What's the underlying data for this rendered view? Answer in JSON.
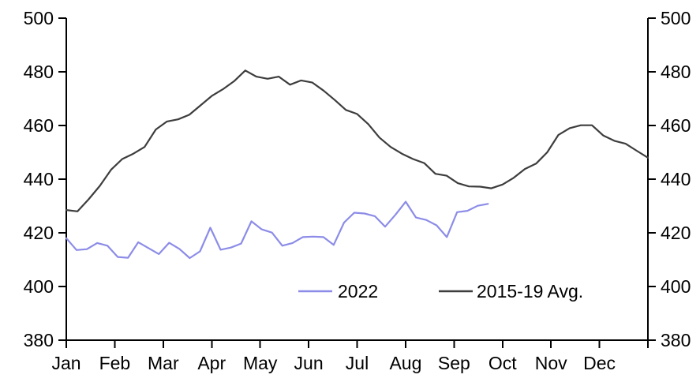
{
  "figure": {
    "background_color": "#ffffff",
    "axis_color": "#000000",
    "title": ""
  },
  "chart_data": {
    "type": "line",
    "title": "",
    "xlabel": "",
    "ylabel": "",
    "grid": false,
    "x_axis": {
      "categories": [
        "Jan",
        "Feb",
        "Mar",
        "Apr",
        "May",
        "Jun",
        "Jul",
        "Aug",
        "Sep",
        "Oct",
        "Nov",
        "Dec"
      ],
      "range_months": [
        0,
        12
      ]
    },
    "y_axis": {
      "min": 380,
      "max": 500,
      "tick_interval": 20,
      "ticks": [
        500,
        480,
        460,
        440,
        420,
        400,
        380
      ],
      "sides": [
        "left",
        "right"
      ]
    },
    "legend": {
      "position": "inside-bottom-center",
      "entries": [
        "2022",
        "2015-19 Avg."
      ]
    },
    "series": [
      {
        "name": "2022",
        "color": "#8c8ce8",
        "x_start_month": 0,
        "x_end_month": 8.7,
        "values": [
          418,
          413.6,
          413.9,
          416.2,
          415.2,
          411,
          410.7,
          416.5,
          414.3,
          412.1,
          416.3,
          414,
          410.6,
          413.1,
          421.9,
          413.7,
          414.5,
          416,
          424.3,
          421.3,
          420.1,
          415.2,
          416.2,
          418.4,
          418.6,
          418.4,
          415.5,
          423.8,
          427.5,
          427.2,
          426.2,
          422.3,
          426.7,
          431.6,
          425.7,
          424.8,
          422.8,
          418.4,
          427.7,
          428.2,
          430.1,
          430.8
        ]
      },
      {
        "name": "2015-19 Avg.",
        "color": "#3d3d3d",
        "x_start_month": 0,
        "x_end_month": 12,
        "values": [
          428.5,
          428,
          432.5,
          437.5,
          443.5,
          447.5,
          449.5,
          452,
          458.5,
          461.5,
          462.3,
          464,
          467.5,
          471,
          473.5,
          476.5,
          480.5,
          478.2,
          477.4,
          478.2,
          475.2,
          476.8,
          476,
          473,
          469.5,
          465.8,
          464.3,
          460.5,
          455.5,
          452,
          449.5,
          447.5,
          446,
          442,
          441.3,
          438.5,
          437.3,
          437.2,
          436.6,
          438,
          440.5,
          443.8,
          445.8,
          450,
          456.5,
          459,
          460.1,
          460.1,
          456.3,
          454.3,
          453.2,
          450.6,
          448
        ]
      }
    ]
  }
}
